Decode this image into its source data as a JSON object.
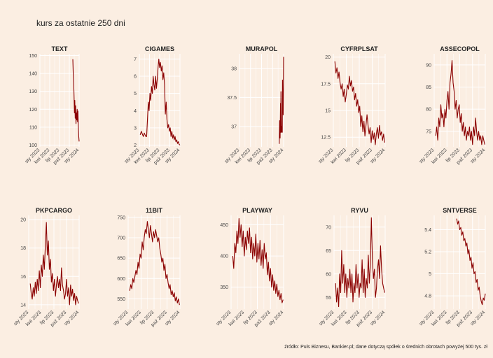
{
  "page": {
    "title": "kurs za ostatnie 250 dni",
    "caption": "źródło: Puls Biznesu, Bankier.pl; dane dotyczą spółek o średnich obrotach powyżej 500 tys. zł"
  },
  "colors": {
    "background": "#fbeee2",
    "line": "#8b0000",
    "grid": "#ffffff"
  },
  "x_ticks": [
    "sty 2023",
    "kwi 2023",
    "lip 2023",
    "paź 2023",
    "sty 2024"
  ],
  "chart_data": [
    {
      "type": "line",
      "title": "TEXT",
      "yticks": [
        100,
        110,
        120,
        130,
        140,
        150
      ],
      "ylim": [
        99,
        151
      ],
      "xrange": [
        0.0,
        1.0
      ],
      "series": [
        {
          "x": [
            0.84,
            0.85,
            0.86,
            0.87,
            0.88,
            0.89,
            0.9,
            0.91,
            0.92,
            0.93,
            0.94,
            0.95,
            0.96,
            0.97,
            0.98,
            0.99,
            1.0
          ],
          "y": [
            148,
            140,
            135,
            128,
            118,
            125,
            115,
            122,
            112,
            118,
            114,
            120,
            113,
            119,
            110,
            105,
            102
          ]
        }
      ]
    },
    {
      "type": "line",
      "title": "CIGAMES",
      "yticks": [
        2,
        3,
        4,
        5,
        6,
        7
      ],
      "ylim": [
        1.9,
        7.3
      ],
      "xrange": [
        0.0,
        1.0
      ],
      "series": [
        {
          "x": [
            0.02,
            0.05,
            0.08,
            0.1,
            0.12,
            0.14,
            0.16,
            0.18,
            0.2,
            0.22,
            0.24,
            0.26,
            0.28,
            0.3,
            0.32,
            0.34,
            0.36,
            0.38,
            0.4,
            0.42,
            0.44,
            0.46,
            0.48,
            0.5,
            0.52,
            0.54,
            0.56,
            0.58,
            0.6,
            0.62,
            0.64,
            0.66,
            0.68,
            0.7,
            0.72,
            0.74,
            0.76,
            0.78,
            0.8,
            0.82,
            0.84,
            0.86,
            0.88,
            0.9,
            0.92,
            0.94,
            0.96,
            0.98,
            1.0
          ],
          "y": [
            2.6,
            2.8,
            2.6,
            2.5,
            2.7,
            2.6,
            2.5,
            2.5,
            3.5,
            4.5,
            4.0,
            5.0,
            4.6,
            5.4,
            5.0,
            6.0,
            5.5,
            5.2,
            6.0,
            5.3,
            5.8,
            6.5,
            7.0,
            6.5,
            6.8,
            6.3,
            6.6,
            5.8,
            6.2,
            5.5,
            3.8,
            4.5,
            3.5,
            3.0,
            3.2,
            2.8,
            3.0,
            2.5,
            2.8,
            2.4,
            2.6,
            2.3,
            2.5,
            2.2,
            2.3,
            2.1,
            2.2,
            2.05,
            2.0
          ]
        }
      ]
    },
    {
      "type": "line",
      "title": "MURAPOL",
      "yticks": [
        37.0,
        37.5,
        38.0
      ],
      "ylim": [
        36.65,
        38.25
      ],
      "xrange": [
        0.0,
        1.0
      ],
      "series": [
        {
          "x": [
            0.9,
            0.91,
            0.92,
            0.93,
            0.935,
            0.94,
            0.95,
            0.96,
            0.97,
            0.975,
            0.98,
            0.99,
            1.0
          ],
          "y": [
            36.7,
            37.1,
            36.8,
            37.4,
            36.9,
            37.6,
            36.9,
            37.0,
            36.9,
            37.8,
            37.5,
            37.2,
            38.2
          ]
        }
      ]
    },
    {
      "type": "line",
      "title": "CYFRPLSAT",
      "yticks": [
        12.5,
        15.0,
        17.5,
        20.0
      ],
      "ylim": [
        11.6,
        20.3
      ],
      "xrange": [
        0.0,
        1.0
      ],
      "series": [
        {
          "x": [
            0.03,
            0.05,
            0.07,
            0.09,
            0.11,
            0.13,
            0.15,
            0.17,
            0.19,
            0.21,
            0.23,
            0.25,
            0.27,
            0.29,
            0.31,
            0.33,
            0.35,
            0.37,
            0.39,
            0.41,
            0.43,
            0.45,
            0.47,
            0.49,
            0.51,
            0.53,
            0.55,
            0.57,
            0.59,
            0.61,
            0.63,
            0.65,
            0.67,
            0.69,
            0.71,
            0.73,
            0.75,
            0.77,
            0.79,
            0.81,
            0.83,
            0.85,
            0.87,
            0.89,
            0.91,
            0.93,
            0.95,
            0.97,
            0.99
          ],
          "y": [
            19.6,
            18.5,
            19.0,
            18.0,
            18.6,
            17.6,
            17.0,
            17.5,
            16.3,
            17.0,
            15.8,
            16.5,
            17.4,
            17.0,
            18.2,
            17.3,
            17.8,
            16.8,
            17.2,
            16.0,
            16.6,
            15.4,
            16.0,
            14.8,
            15.4,
            13.5,
            14.5,
            13.0,
            14.0,
            12.6,
            13.6,
            14.6,
            13.6,
            12.8,
            13.4,
            12.0,
            13.1,
            12.3,
            12.9,
            11.8,
            12.8,
            13.4,
            12.4,
            13.6,
            12.7,
            13.0,
            12.2,
            12.8,
            12.0
          ]
        }
      ]
    },
    {
      "type": "line",
      "title": "ASSECOPOL",
      "yticks": [
        75,
        80,
        85,
        90
      ],
      "ylim": [
        71.5,
        92.5
      ],
      "xrange": [
        0.0,
        1.0
      ],
      "series": [
        {
          "x": [
            0.03,
            0.05,
            0.07,
            0.09,
            0.11,
            0.13,
            0.15,
            0.17,
            0.19,
            0.21,
            0.23,
            0.25,
            0.27,
            0.29,
            0.31,
            0.33,
            0.35,
            0.37,
            0.39,
            0.41,
            0.43,
            0.45,
            0.47,
            0.49,
            0.51,
            0.53,
            0.55,
            0.57,
            0.59,
            0.61,
            0.63,
            0.65,
            0.67,
            0.69,
            0.71,
            0.73,
            0.75,
            0.77,
            0.79,
            0.81,
            0.83,
            0.85,
            0.87,
            0.89,
            0.91,
            0.93,
            0.95,
            0.97,
            0.99
          ],
          "y": [
            74,
            76,
            73,
            78,
            76,
            81,
            78,
            79,
            76,
            80,
            78,
            82,
            84,
            80,
            86,
            88,
            91,
            86,
            84,
            80,
            82,
            78,
            80,
            81,
            77,
            79,
            75,
            77,
            74,
            76,
            73,
            75,
            74,
            76,
            73,
            75,
            72,
            76,
            74,
            78,
            75,
            73,
            75,
            73,
            74,
            72,
            74,
            73,
            72
          ]
        }
      ]
    },
    {
      "type": "line",
      "title": "PKPCARGO",
      "yticks": [
        14,
        16,
        18,
        20
      ],
      "ylim": [
        13.7,
        20.3
      ],
      "xrange": [
        0.0,
        1.0
      ],
      "series": [
        {
          "x": [
            0.03,
            0.05,
            0.07,
            0.09,
            0.11,
            0.13,
            0.15,
            0.17,
            0.19,
            0.21,
            0.23,
            0.25,
            0.27,
            0.29,
            0.31,
            0.33,
            0.35,
            0.37,
            0.39,
            0.41,
            0.43,
            0.45,
            0.47,
            0.49,
            0.51,
            0.53,
            0.55,
            0.57,
            0.59,
            0.61,
            0.63,
            0.65,
            0.67,
            0.69,
            0.71,
            0.73,
            0.75,
            0.77,
            0.79,
            0.81,
            0.83,
            0.85,
            0.87,
            0.89,
            0.91,
            0.93,
            0.95,
            0.97,
            0.99
          ],
          "y": [
            15.5,
            14.8,
            14.4,
            15.2,
            14.6,
            15.6,
            14.8,
            15.8,
            15.0,
            16.4,
            15.2,
            16.8,
            16.0,
            17.5,
            16.5,
            18.2,
            19.8,
            17.5,
            18.5,
            16.5,
            17.2,
            15.6,
            16.2,
            15.0,
            15.8,
            14.6,
            15.4,
            16.0,
            15.2,
            15.8,
            15.0,
            16.6,
            15.4,
            15.0,
            14.4,
            14.8,
            15.8,
            14.6,
            15.2,
            14.0,
            15.4,
            14.6,
            15.1,
            14.3,
            14.8,
            14.0,
            14.6,
            14.3,
            14.1
          ]
        }
      ]
    },
    {
      "type": "line",
      "title": "11BIT",
      "yticks": [
        550,
        600,
        650,
        700,
        750
      ],
      "ylim": [
        525,
        755
      ],
      "xrange": [
        0.0,
        1.0
      ],
      "series": [
        {
          "x": [
            0.03,
            0.05,
            0.07,
            0.09,
            0.11,
            0.13,
            0.15,
            0.17,
            0.19,
            0.21,
            0.23,
            0.25,
            0.27,
            0.29,
            0.31,
            0.33,
            0.35,
            0.37,
            0.39,
            0.41,
            0.43,
            0.45,
            0.47,
            0.49,
            0.51,
            0.53,
            0.55,
            0.57,
            0.59,
            0.61,
            0.63,
            0.65,
            0.67,
            0.69,
            0.71,
            0.73,
            0.75,
            0.77,
            0.79,
            0.81,
            0.83,
            0.85,
            0.87,
            0.89,
            0.91,
            0.93,
            0.95,
            0.97,
            0.99
          ],
          "y": [
            570,
            585,
            575,
            600,
            590,
            605,
            620,
            610,
            640,
            625,
            660,
            650,
            690,
            670,
            700,
            720,
            710,
            740,
            720,
            700,
            730,
            710,
            690,
            715,
            700,
            720,
            705,
            690,
            700,
            675,
            660,
            640,
            650,
            620,
            635,
            600,
            610,
            590,
            575,
            585,
            560,
            570,
            555,
            565,
            545,
            555,
            540,
            550,
            535
          ]
        }
      ]
    },
    {
      "type": "line",
      "title": "PLAYWAY",
      "yticks": [
        350,
        400,
        450
      ],
      "ylim": [
        315,
        465
      ],
      "xrange": [
        0.0,
        1.0
      ],
      "series": [
        {
          "x": [
            0.03,
            0.05,
            0.07,
            0.09,
            0.11,
            0.13,
            0.15,
            0.17,
            0.19,
            0.21,
            0.23,
            0.25,
            0.27,
            0.29,
            0.31,
            0.33,
            0.35,
            0.37,
            0.39,
            0.41,
            0.43,
            0.45,
            0.47,
            0.49,
            0.51,
            0.53,
            0.55,
            0.57,
            0.59,
            0.61,
            0.63,
            0.65,
            0.67,
            0.69,
            0.71,
            0.73,
            0.75,
            0.77,
            0.79,
            0.81,
            0.83,
            0.85,
            0.87,
            0.89,
            0.91,
            0.93,
            0.95,
            0.97,
            0.99
          ],
          "y": [
            400,
            380,
            420,
            405,
            440,
            420,
            460,
            430,
            450,
            415,
            440,
            400,
            430,
            410,
            440,
            420,
            445,
            405,
            430,
            395,
            420,
            400,
            435,
            390,
            420,
            395,
            425,
            385,
            410,
            380,
            420,
            395,
            405,
            370,
            390,
            360,
            380,
            350,
            370,
            345,
            360,
            340,
            355,
            335,
            345,
            330,
            340,
            325,
            330
          ]
        }
      ]
    },
    {
      "type": "line",
      "title": "RYVU",
      "yticks": [
        55,
        60,
        65,
        70
      ],
      "ylim": [
        52.5,
        72.5
      ],
      "xrange": [
        0.0,
        1.0
      ],
      "series": [
        {
          "x": [
            0.03,
            0.05,
            0.07,
            0.09,
            0.11,
            0.13,
            0.15,
            0.17,
            0.19,
            0.21,
            0.23,
            0.25,
            0.27,
            0.29,
            0.31,
            0.33,
            0.35,
            0.37,
            0.39,
            0.41,
            0.43,
            0.45,
            0.47,
            0.49,
            0.51,
            0.53,
            0.55,
            0.57,
            0.59,
            0.61,
            0.63,
            0.65,
            0.67,
            0.69,
            0.71,
            0.73,
            0.75,
            0.77,
            0.79,
            0.81,
            0.83,
            0.85,
            0.87,
            0.89,
            0.91,
            0.93,
            0.95,
            0.97,
            0.99
          ],
          "y": [
            58,
            54,
            57,
            53,
            60,
            56,
            65,
            58,
            62,
            56,
            60,
            55,
            59,
            57,
            61,
            56,
            60,
            54,
            58,
            56,
            62,
            57,
            60,
            55,
            58,
            57,
            63,
            56,
            61,
            55,
            59,
            57,
            64,
            58,
            62,
            72,
            63,
            59,
            61,
            55,
            57,
            61,
            63,
            59,
            66,
            61,
            58,
            57,
            56
          ]
        }
      ]
    },
    {
      "type": "line",
      "title": "SNTVERSE",
      "yticks": [
        4.8,
        5.0,
        5.2,
        5.4
      ],
      "ylim": [
        4.68,
        5.53
      ],
      "xrange": [
        0.0,
        1.0
      ],
      "series": [
        {
          "x": [
            0.44,
            0.46,
            0.48,
            0.5,
            0.52,
            0.54,
            0.56,
            0.58,
            0.6,
            0.62,
            0.64,
            0.66,
            0.68,
            0.7,
            0.72,
            0.74,
            0.76,
            0.78,
            0.8,
            0.82,
            0.84,
            0.86,
            0.88,
            0.9,
            0.92,
            0.94,
            0.96,
            0.98,
            1.0
          ],
          "y": [
            5.5,
            5.45,
            5.48,
            5.4,
            5.42,
            5.35,
            5.38,
            5.3,
            5.32,
            5.25,
            5.28,
            5.18,
            5.22,
            5.12,
            5.15,
            5.05,
            5.1,
            5.0,
            5.02,
            4.92,
            4.95,
            4.85,
            4.88,
            4.8,
            4.75,
            4.72,
            4.78,
            4.76,
            4.82
          ]
        }
      ]
    }
  ]
}
